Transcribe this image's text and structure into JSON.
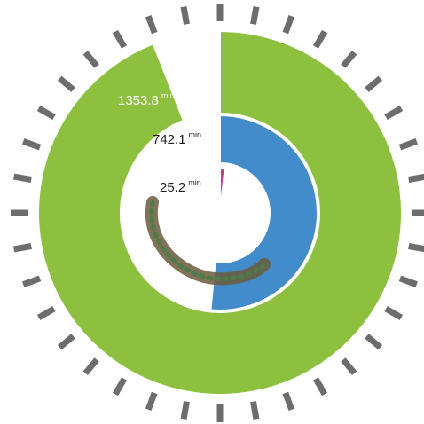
{
  "chart_data": {
    "type": "radial_bar",
    "unit": "min",
    "values": [
      1353.8,
      742.1,
      25.2
    ],
    "colors": [
      "#8dc03f",
      "#438ccb",
      "#c8388f"
    ],
    "ylim": [
      0,
      1440
    ]
  }
}
